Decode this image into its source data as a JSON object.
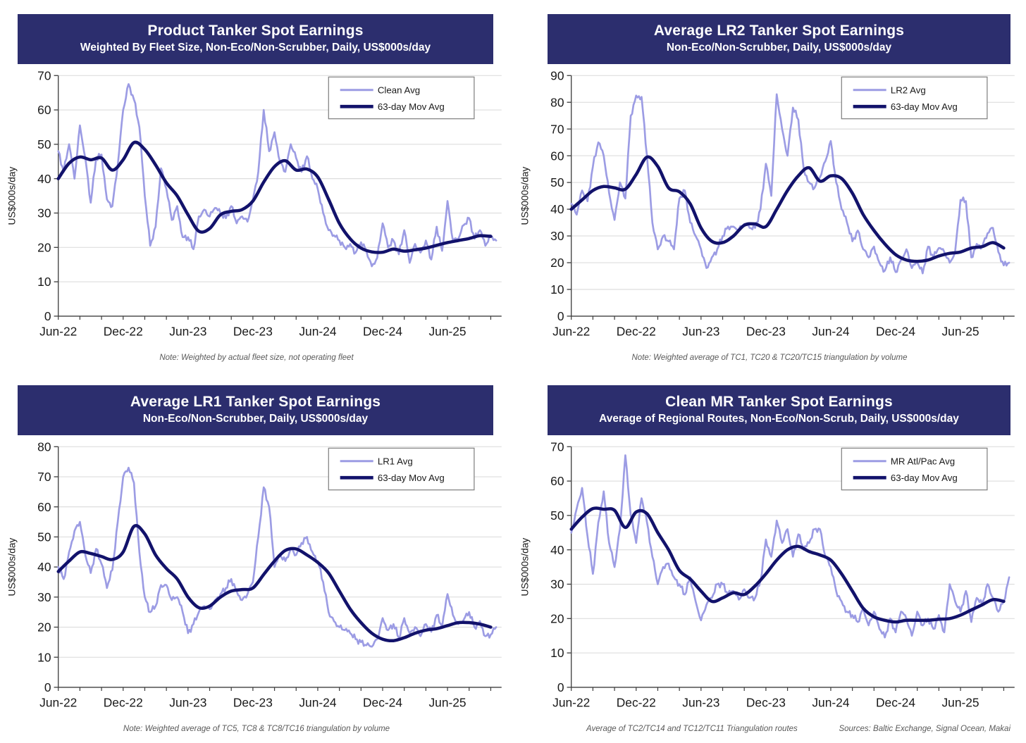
{
  "colors": {
    "header_bg": "#2C2E6E",
    "header_text": "#FFFFFF",
    "daily_line": "#9C9CE4",
    "ma_line": "#12126B",
    "grid": "#D9D9D9",
    "axis": "#3F3F3F",
    "tick_text": "#1A1A1A",
    "note_text": "#595959",
    "legend_border": "#808080"
  },
  "sources_label": "Sources: Baltic Exchange, Signal Ocean, Makai",
  "chart_data": [
    {
      "type": "line",
      "title": "Product Tanker Spot Earnings",
      "subtitle": "Weighted By Fleet Size, Non-Eco/Non-Scrubber, Daily, US$000s/day",
      "ylabel": "US$000s/day",
      "ylim": [
        0,
        70
      ],
      "ytick_step": 10,
      "x_months_span": 41,
      "x_minor_tick_step": 2,
      "x_tick_months": [
        0,
        6,
        12,
        18,
        24,
        30,
        36
      ],
      "x_tick_labels": [
        "Jun-22",
        "Dec-22",
        "Jun-23",
        "Dec-23",
        "Jun-24",
        "Dec-24",
        "Jun-25"
      ],
      "grid": true,
      "legend_position": "top-right",
      "note": "Note: Weighted  by actual fleet size, not operating fleet",
      "series": [
        {
          "name": "Clean Avg",
          "role": "daily",
          "x_start": 0,
          "x_step": 0.5,
          "values": [
            48,
            42,
            50,
            40,
            55.5,
            46,
            33,
            46,
            47,
            34,
            32,
            44,
            60,
            67.5,
            63,
            55,
            35,
            20.5,
            26,
            43,
            37,
            28,
            32,
            23,
            23,
            19.5,
            29,
            31,
            29,
            31.5,
            30,
            28.5,
            32,
            27,
            29,
            27.5,
            34,
            42,
            60,
            48,
            53.5,
            45,
            42,
            50,
            46,
            42,
            46.5,
            40,
            37,
            30,
            25,
            23.5,
            22,
            20,
            21,
            18.5,
            21.5,
            19,
            14.5,
            17,
            27,
            20,
            22,
            18,
            25,
            15.5,
            21,
            18.5,
            22,
            16.5,
            26,
            19,
            33.5,
            22,
            22.5,
            26.5,
            28.5,
            22.5,
            25,
            20.5,
            23.5,
            22
          ]
        },
        {
          "name": "63-day Mov Avg",
          "role": "ma",
          "x_start": 0,
          "x_step": 1,
          "values": [
            40,
            44.5,
            46.3,
            45.5,
            46,
            42.5,
            45.5,
            50.5,
            48.5,
            44,
            38.8,
            35,
            29.5,
            24.7,
            25.5,
            29.5,
            30.5,
            31,
            33.5,
            39,
            43.5,
            45.2,
            42.5,
            42.8,
            40.5,
            34,
            27,
            22.5,
            19.8,
            18.7,
            18.6,
            19.5,
            18.9,
            19.3,
            19.8,
            20.6,
            21.4,
            22,
            22.6,
            23.4,
            23.2
          ]
        }
      ]
    },
    {
      "type": "line",
      "title": "Average LR2 Tanker Spot Earnings",
      "subtitle": "Non-Eco/Non-Scrubber, Daily, US$000s/day",
      "ylabel": "US$000s/day",
      "ylim": [
        0,
        90
      ],
      "ytick_step": 10,
      "x_months_span": 41,
      "x_minor_tick_step": 2,
      "x_tick_months": [
        0,
        6,
        12,
        18,
        24,
        30,
        36
      ],
      "x_tick_labels": [
        "Jun-22",
        "Dec-22",
        "Jun-23",
        "Dec-23",
        "Jun-24",
        "Dec-24",
        "Jun-25"
      ],
      "grid": true,
      "legend_position": "top-right",
      "note": "Note: Weighted  average of TC1, TC20  & TC20/TC15 triangulation by volume",
      "series": [
        {
          "name": "LR2 Avg",
          "role": "daily",
          "x_start": 0,
          "x_step": 0.5,
          "values": [
            42,
            38,
            47,
            43,
            56,
            65,
            60,
            46,
            36,
            50,
            44,
            75,
            82.5,
            82,
            60,
            35,
            25,
            30,
            28,
            25,
            44,
            47,
            35,
            30,
            25,
            18,
            22,
            25,
            30,
            33.5,
            33.5,
            32.5,
            34.5,
            33,
            33,
            40,
            57,
            45,
            83,
            70,
            60,
            78,
            73.5,
            55,
            50,
            48,
            52,
            58,
            65.5,
            50,
            40,
            35,
            28,
            32,
            25,
            22,
            26,
            20,
            17,
            22,
            16.5,
            21,
            25,
            18,
            20,
            16,
            26,
            22,
            25.5,
            24,
            20,
            24,
            43.5,
            43,
            22,
            27,
            26,
            31,
            33,
            24,
            19,
            20
          ]
        },
        {
          "name": "63-day Mov Avg",
          "role": "ma",
          "x_start": 0,
          "x_step": 1,
          "values": [
            40,
            43.5,
            47,
            48.5,
            48,
            47.5,
            53,
            59.5,
            56,
            48,
            46.5,
            42,
            33,
            28,
            27.5,
            30,
            34,
            34.5,
            33.5,
            40,
            47,
            52.5,
            55.5,
            50.5,
            52.5,
            51.5,
            46,
            38,
            32,
            27,
            23,
            21,
            20.5,
            21,
            22.5,
            23.5,
            24,
            25.5,
            26,
            27.5,
            25.5
          ]
        }
      ]
    },
    {
      "type": "line",
      "title": "Average LR1 Tanker Spot Earnings",
      "subtitle": "Non-Eco/Non-Scrubber, Daily, US$000s/day",
      "ylabel": "US$000s/day",
      "ylim": [
        0,
        80
      ],
      "ytick_step": 10,
      "x_months_span": 41,
      "x_minor_tick_step": 2,
      "x_tick_months": [
        0,
        6,
        12,
        18,
        24,
        30,
        36
      ],
      "x_tick_labels": [
        "Jun-22",
        "Dec-22",
        "Jun-23",
        "Dec-23",
        "Jun-24",
        "Dec-24",
        "Jun-25"
      ],
      "grid": true,
      "legend_position": "top-right",
      "note": "Note: Weighted  average of TC5, TC8  & TC8/TC16 triangulation by volume",
      "series": [
        {
          "name": "LR1 Avg",
          "role": "daily",
          "x_start": 0,
          "x_step": 0.5,
          "values": [
            40,
            36,
            45,
            52,
            55,
            44,
            38,
            46,
            41,
            33,
            39,
            55,
            70,
            73,
            68,
            45,
            30,
            25,
            27,
            34,
            34,
            29,
            30,
            25,
            18,
            21,
            25,
            27,
            26,
            29,
            31,
            33,
            36,
            32,
            29,
            31,
            35,
            50,
            66.5,
            60,
            40,
            44,
            42,
            46,
            44,
            48,
            50,
            45,
            42,
            35,
            25,
            22,
            20,
            19,
            18,
            16,
            15,
            14,
            13.5,
            16,
            23,
            19,
            21,
            16.5,
            23,
            18,
            20,
            17,
            21,
            18.5,
            24,
            20,
            31,
            24,
            21,
            22.5,
            25,
            20,
            22,
            17,
            17.5,
            20
          ]
        },
        {
          "name": "63-day Mov Avg",
          "role": "ma",
          "x_start": 0,
          "x_step": 1,
          "values": [
            38.5,
            42,
            45,
            44.5,
            43.5,
            42.5,
            45,
            53.5,
            51,
            44,
            39.5,
            36,
            30,
            26.5,
            27,
            30,
            32,
            32.5,
            33,
            37.5,
            42,
            45.5,
            46,
            44,
            41.5,
            38,
            32,
            26,
            21.5,
            18,
            16,
            15.5,
            16.5,
            18,
            19,
            19.5,
            20.5,
            21.5,
            21.5,
            21,
            20
          ]
        }
      ]
    },
    {
      "type": "line",
      "title": "Clean MR Tanker Spot Earnings",
      "subtitle": "Average of Regional Routes, Non-Eco/Non-Scrub, Daily, US$000s/day",
      "ylabel": "US$000s/day",
      "ylim": [
        0,
        70
      ],
      "ytick_step": 10,
      "x_months_span": 41,
      "x_minor_tick_step": 2,
      "x_tick_months": [
        0,
        6,
        12,
        18,
        24,
        30,
        36
      ],
      "x_tick_labels": [
        "Jun-22",
        "Dec-22",
        "Jun-23",
        "Dec-23",
        "Jun-24",
        "Dec-24",
        "Jun-25"
      ],
      "grid": true,
      "legend_position": "top-right",
      "note": "Average of TC2/TC14 and TC12/TC11 Triangulation routes",
      "series": [
        {
          "name": "MR Atl/Pac Avg",
          "role": "daily",
          "x_start": 0,
          "x_step": 0.5,
          "values": [
            45,
            52,
            58,
            44,
            33,
            48,
            57,
            42,
            35,
            46,
            67.5,
            50,
            42,
            55,
            48,
            38,
            30,
            35,
            36,
            32,
            30,
            27,
            32,
            25,
            19.5,
            24,
            26,
            30,
            30,
            27,
            28,
            25.5,
            28.5,
            26,
            26,
            31,
            43,
            38,
            48.5,
            42,
            46,
            38,
            44.5,
            40,
            42,
            46,
            46,
            38,
            35,
            28,
            25,
            22,
            21,
            19,
            23,
            18,
            22,
            17,
            14.5,
            20,
            16,
            22,
            20,
            15,
            22,
            18,
            20,
            17,
            21,
            16,
            30,
            25,
            22,
            28,
            19,
            26,
            24,
            30,
            26,
            22,
            25,
            32
          ]
        },
        {
          "name": "63-day Mov Avg",
          "role": "ma",
          "x_start": 0,
          "x_step": 1,
          "values": [
            46,
            49.5,
            52,
            51.8,
            51.5,
            46.5,
            51,
            50.5,
            45,
            40,
            34,
            31.5,
            28,
            25,
            26,
            27.5,
            27,
            29.5,
            33,
            37,
            40,
            41,
            39.5,
            38.5,
            37,
            33,
            28,
            23,
            20.5,
            19.5,
            19,
            19.5,
            19.5,
            19.5,
            19.8,
            20,
            21,
            22.5,
            24,
            25.5,
            25
          ]
        }
      ]
    }
  ]
}
